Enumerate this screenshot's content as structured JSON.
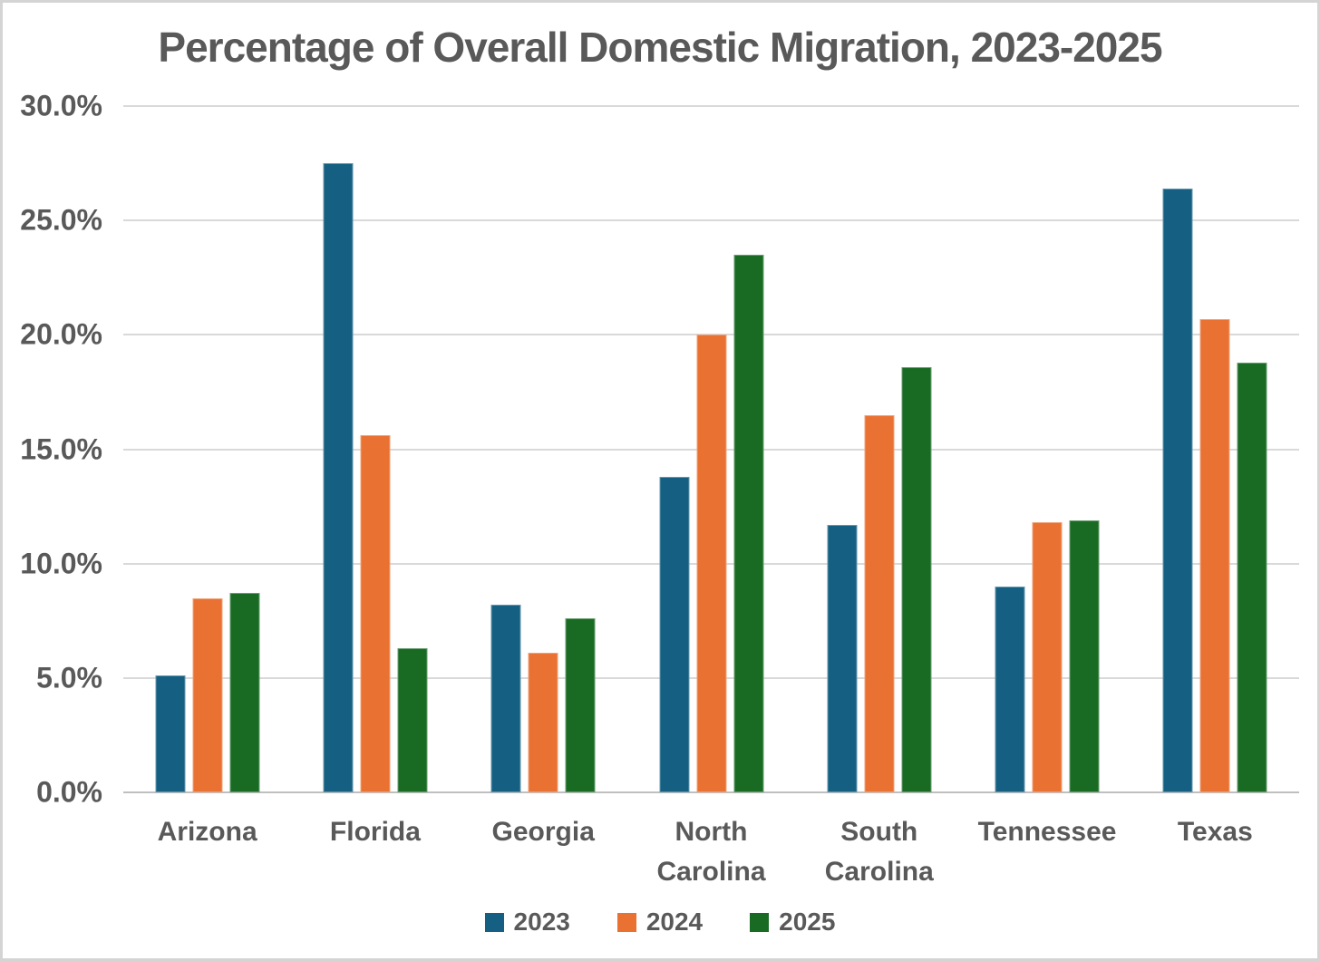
{
  "chart_data": {
    "type": "bar",
    "title": "Percentage of Overall Domestic Migration, 2023-2025",
    "xlabel": "",
    "ylabel": "",
    "ylim": [
      0,
      30
    ],
    "grid": true,
    "legend_position": "bottom",
    "yticks": [
      {
        "value": 0,
        "label": "0.0%"
      },
      {
        "value": 5,
        "label": "5.0%"
      },
      {
        "value": 10,
        "label": "10.0%"
      },
      {
        "value": 15,
        "label": "15.0%"
      },
      {
        "value": 20,
        "label": "20.0%"
      },
      {
        "value": 25,
        "label": "25.0%"
      },
      {
        "value": 30,
        "label": "30.0%"
      }
    ],
    "categories": [
      "Arizona",
      "Florida",
      "Georgia",
      "North Carolina",
      "South Carolina",
      "Tennessee",
      "Texas"
    ],
    "series": [
      {
        "name": "2023",
        "color": "#156082",
        "values": [
          5.1,
          27.5,
          8.2,
          13.8,
          11.7,
          9.0,
          26.4
        ]
      },
      {
        "name": "2024",
        "color": "#E97132",
        "values": [
          8.5,
          15.6,
          6.1,
          20.0,
          16.5,
          11.8,
          20.7
        ]
      },
      {
        "name": "2025",
        "color": "#196B24",
        "values": [
          8.7,
          6.3,
          7.6,
          23.5,
          18.6,
          11.9,
          18.8
        ]
      }
    ],
    "colors": {
      "gridline": "#d9d9d9",
      "axis_line": "#bfbfbf",
      "text": "#595959",
      "background": "#ffffff",
      "frame_border": "#d4d4d4"
    }
  }
}
